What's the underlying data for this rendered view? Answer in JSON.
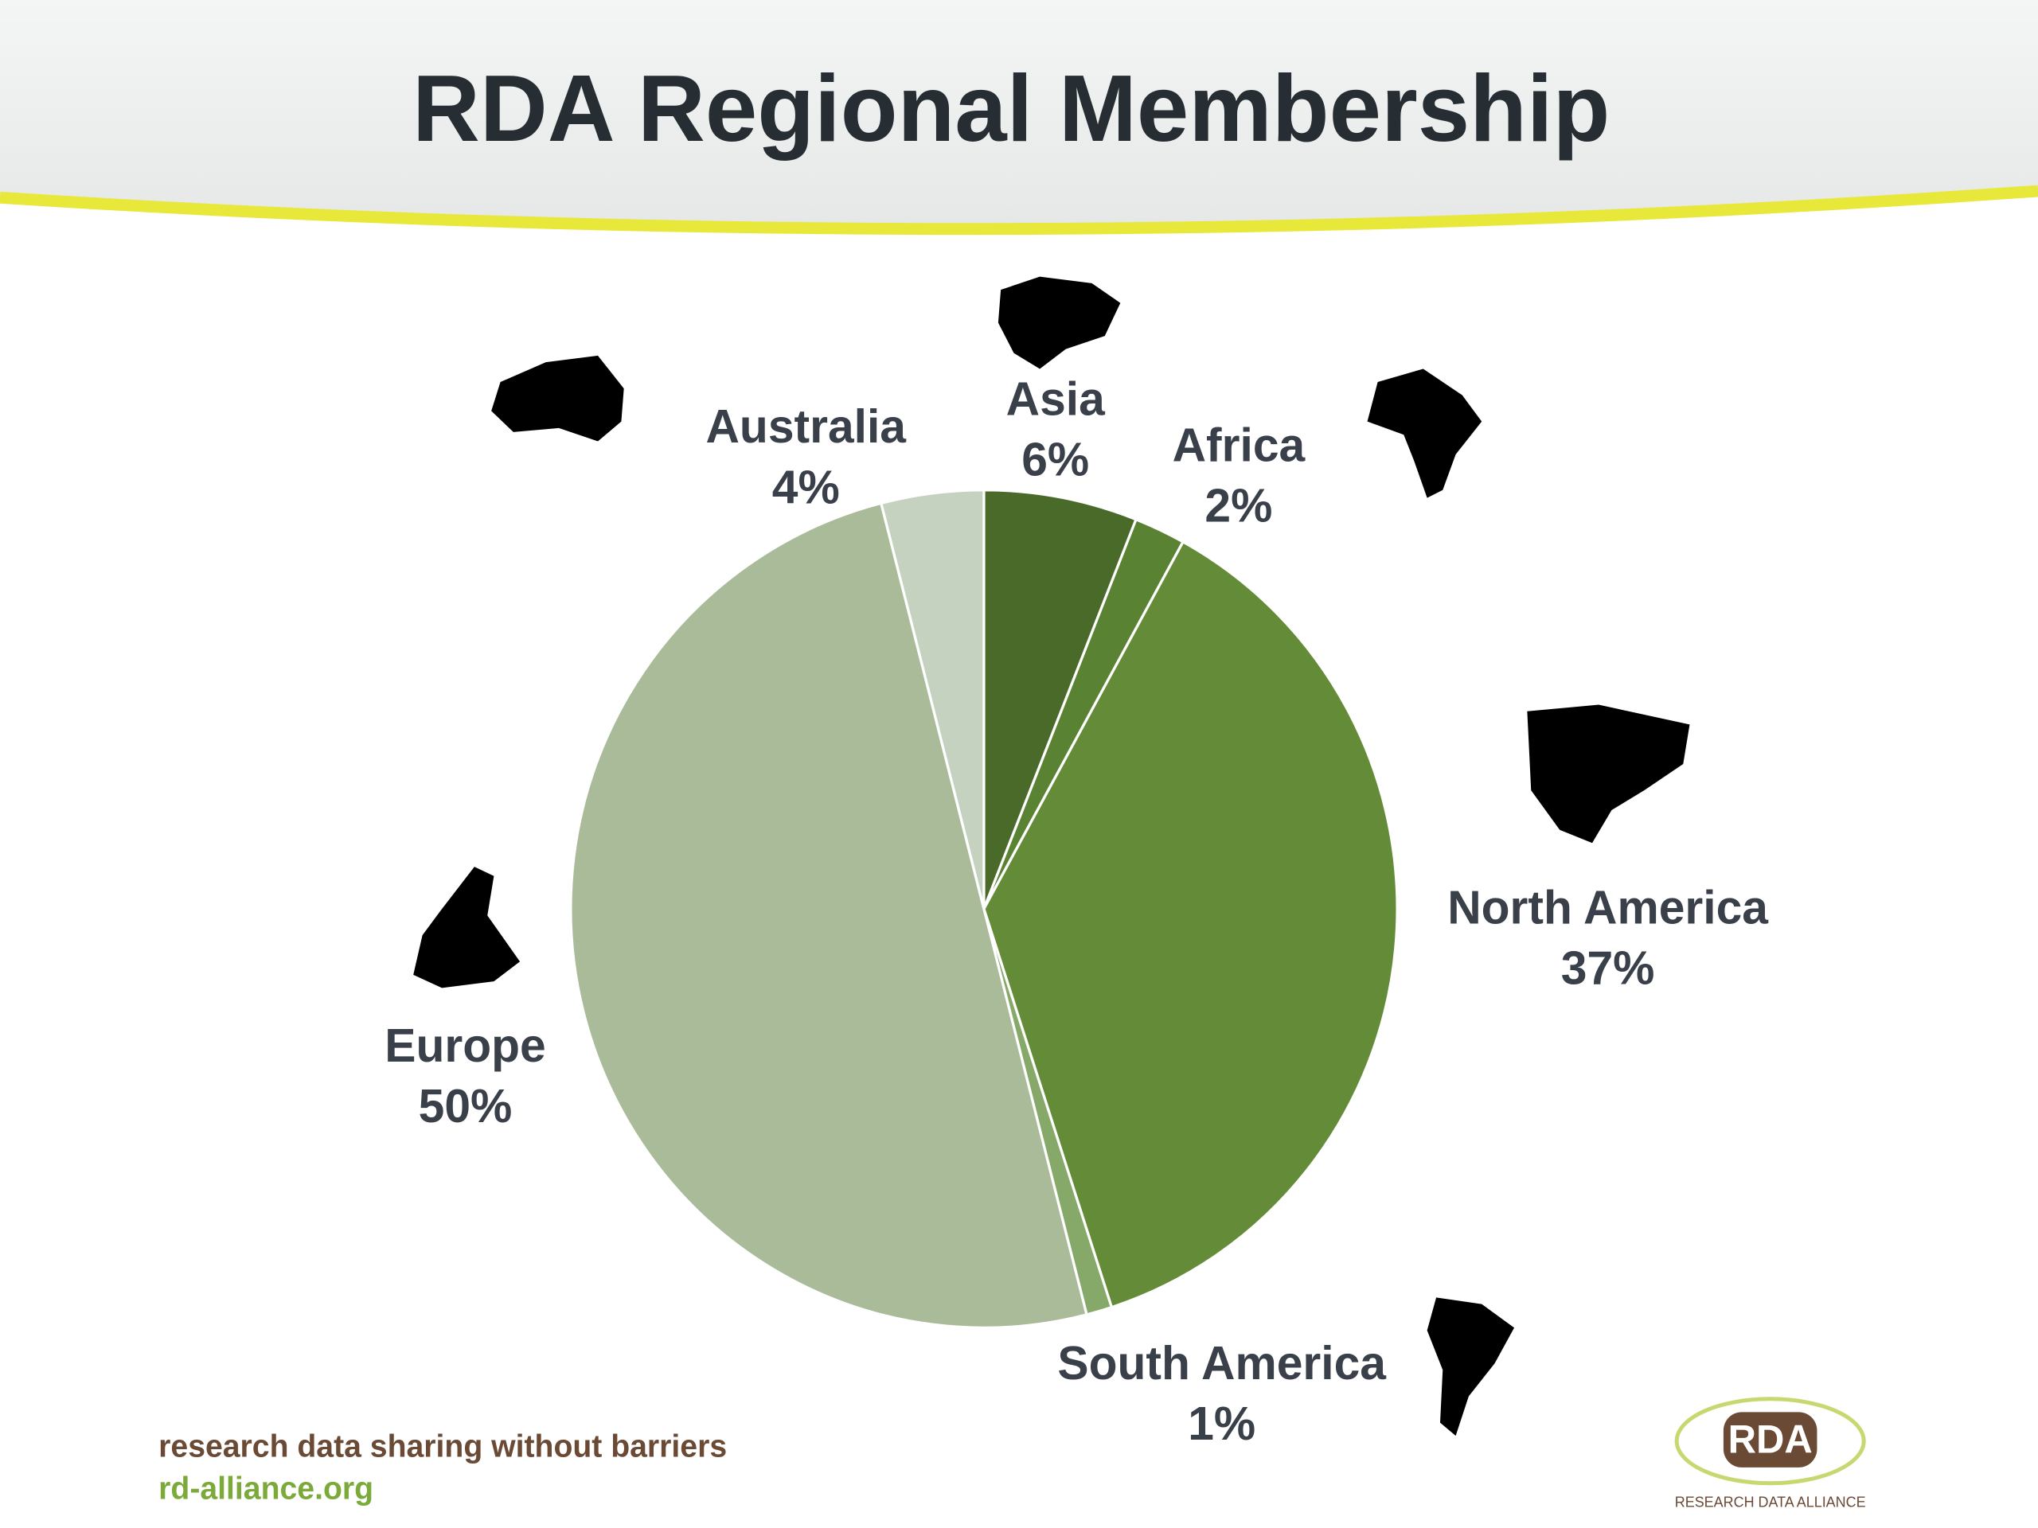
{
  "chart_data": {
    "type": "pie",
    "title": "RDA Regional Membership",
    "categories": [
      "Asia",
      "Africa",
      "North America",
      "South America",
      "Europe",
      "Australia"
    ],
    "values": [
      6,
      2,
      37,
      1,
      50,
      4
    ],
    "value_labels": [
      "6%",
      "2%",
      "37%",
      "1%",
      "50%",
      "4%"
    ],
    "colors": [
      "#4a6a2a",
      "#5a8233",
      "#648c38",
      "#86a868",
      "#aabb9a",
      "#c5d2bf"
    ]
  },
  "footer": {
    "tagline": "research data sharing without barriers",
    "url": "rd-alliance.org"
  },
  "logo": {
    "mark": "RDA",
    "name": "RESEARCH DATA ALLIANCE"
  }
}
